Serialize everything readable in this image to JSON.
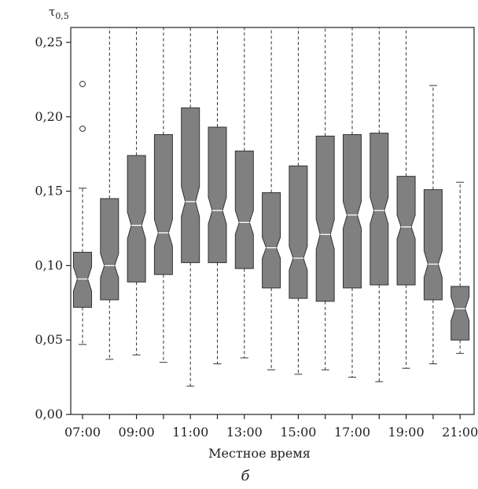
{
  "chart_data": {
    "type": "boxplot",
    "ylabel": "τ0,5",
    "xlabel": "Местное время",
    "caption": "б",
    "ylim": [
      0.0,
      0.26
    ],
    "yticks": [
      0.0,
      0.05,
      0.1,
      0.15,
      0.2,
      0.25
    ],
    "ytick_labels": [
      "0,00",
      "0,05",
      "0,10",
      "0,15",
      "0,20",
      "0,25"
    ],
    "xtick_labels": [
      "07:00",
      "09:00",
      "11:00",
      "13:00",
      "15:00",
      "17:00",
      "19:00",
      "21:00"
    ],
    "grid": false,
    "notched": true,
    "box_color": "#808080",
    "categories": [
      "07:00",
      "08:00",
      "09:00",
      "10:00",
      "11:00",
      "12:00",
      "13:00",
      "14:00",
      "15:00",
      "16:00",
      "17:00",
      "18:00",
      "19:00",
      "20:00",
      "21:00"
    ],
    "boxes": [
      {
        "category": "07:00",
        "whisker_low": 0.047,
        "q1": 0.072,
        "median": 0.091,
        "q3": 0.109,
        "whisker_high": 0.152,
        "notch_low": 0.083,
        "notch_high": 0.099,
        "outliers": [
          0.192,
          0.222
        ]
      },
      {
        "category": "08:00",
        "whisker_low": 0.037,
        "q1": 0.077,
        "median": 0.1,
        "q3": 0.145,
        "whisker_high": 0.26,
        "notch_low": 0.092,
        "notch_high": 0.108,
        "outliers": []
      },
      {
        "category": "09:00",
        "whisker_low": 0.04,
        "q1": 0.089,
        "median": 0.127,
        "q3": 0.174,
        "whisker_high": 0.26,
        "notch_low": 0.118,
        "notch_high": 0.136,
        "outliers": []
      },
      {
        "category": "10:00",
        "whisker_low": 0.035,
        "q1": 0.094,
        "median": 0.122,
        "q3": 0.188,
        "whisker_high": 0.26,
        "notch_low": 0.113,
        "notch_high": 0.131,
        "outliers": []
      },
      {
        "category": "11:00",
        "whisker_low": 0.019,
        "q1": 0.102,
        "median": 0.143,
        "q3": 0.206,
        "whisker_high": 0.26,
        "notch_low": 0.133,
        "notch_high": 0.153,
        "outliers": []
      },
      {
        "category": "12:00",
        "whisker_low": 0.034,
        "q1": 0.102,
        "median": 0.137,
        "q3": 0.193,
        "whisker_high": 0.26,
        "notch_low": 0.128,
        "notch_high": 0.146,
        "outliers": []
      },
      {
        "category": "13:00",
        "whisker_low": 0.038,
        "q1": 0.098,
        "median": 0.129,
        "q3": 0.177,
        "whisker_high": 0.26,
        "notch_low": 0.121,
        "notch_high": 0.137,
        "outliers": []
      },
      {
        "category": "14:00",
        "whisker_low": 0.03,
        "q1": 0.085,
        "median": 0.112,
        "q3": 0.149,
        "whisker_high": 0.26,
        "notch_low": 0.105,
        "notch_high": 0.119,
        "outliers": []
      },
      {
        "category": "15:00",
        "whisker_low": 0.027,
        "q1": 0.078,
        "median": 0.105,
        "q3": 0.167,
        "whisker_high": 0.26,
        "notch_low": 0.097,
        "notch_high": 0.113,
        "outliers": []
      },
      {
        "category": "16:00",
        "whisker_low": 0.03,
        "q1": 0.076,
        "median": 0.121,
        "q3": 0.187,
        "whisker_high": 0.26,
        "notch_low": 0.111,
        "notch_high": 0.131,
        "outliers": []
      },
      {
        "category": "17:00",
        "whisker_low": 0.025,
        "q1": 0.085,
        "median": 0.134,
        "q3": 0.188,
        "whisker_high": 0.26,
        "notch_low": 0.125,
        "notch_high": 0.143,
        "outliers": []
      },
      {
        "category": "18:00",
        "whisker_low": 0.022,
        "q1": 0.087,
        "median": 0.137,
        "q3": 0.189,
        "whisker_high": 0.26,
        "notch_low": 0.128,
        "notch_high": 0.146,
        "outliers": []
      },
      {
        "category": "19:00",
        "whisker_low": 0.031,
        "q1": 0.087,
        "median": 0.126,
        "q3": 0.16,
        "whisker_high": 0.26,
        "notch_low": 0.118,
        "notch_high": 0.134,
        "outliers": []
      },
      {
        "category": "20:00",
        "whisker_low": 0.034,
        "q1": 0.077,
        "median": 0.101,
        "q3": 0.151,
        "whisker_high": 0.221,
        "notch_low": 0.092,
        "notch_high": 0.11,
        "outliers": []
      },
      {
        "category": "21:00",
        "whisker_low": 0.041,
        "q1": 0.05,
        "median": 0.071,
        "q3": 0.086,
        "whisker_high": 0.156,
        "notch_low": 0.063,
        "notch_high": 0.079,
        "outliers": []
      }
    ]
  }
}
